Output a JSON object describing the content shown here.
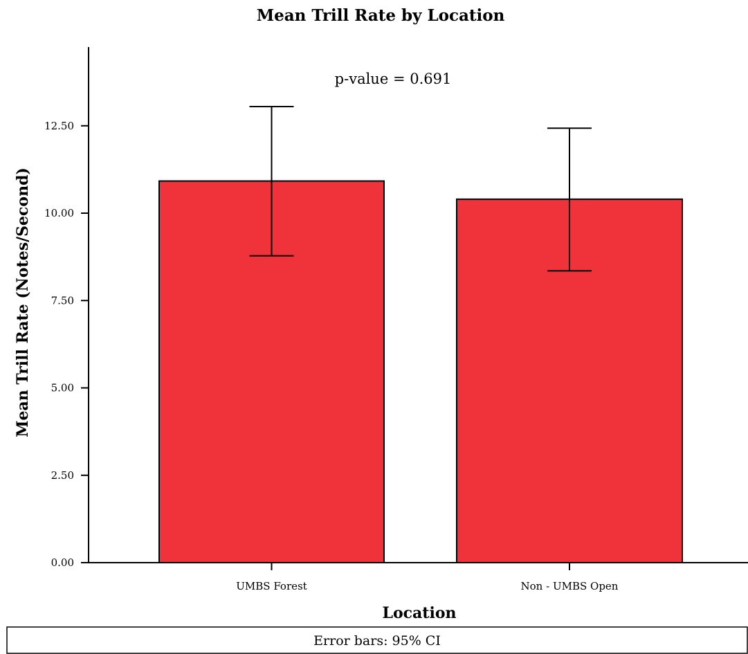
{
  "chart_data": {
    "type": "bar",
    "title": "Mean Trill Rate by Location",
    "xlabel": "Location",
    "ylabel": "Mean Trill Rate (Notes/Second)",
    "categories": [
      "UMBS Forest",
      "Non - UMBS Open"
    ],
    "values": [
      10.92,
      10.4
    ],
    "error_bars": {
      "type": "95% CI",
      "lower": [
        8.78,
        8.35
      ],
      "upper": [
        13.05,
        12.43
      ]
    },
    "ylim": [
      0,
      14.5
    ],
    "yticks": [
      0,
      2.5,
      5,
      7.5,
      10,
      12.5
    ],
    "ytick_labels": [
      "0.00",
      "2.50",
      "5.00",
      "7.50",
      "10.00",
      "12.50"
    ],
    "annotation": "p-value = 0.691",
    "footnote": "Error bars: 95% CI",
    "grid": false,
    "legend": "none",
    "bar_color": "#f0333a"
  }
}
